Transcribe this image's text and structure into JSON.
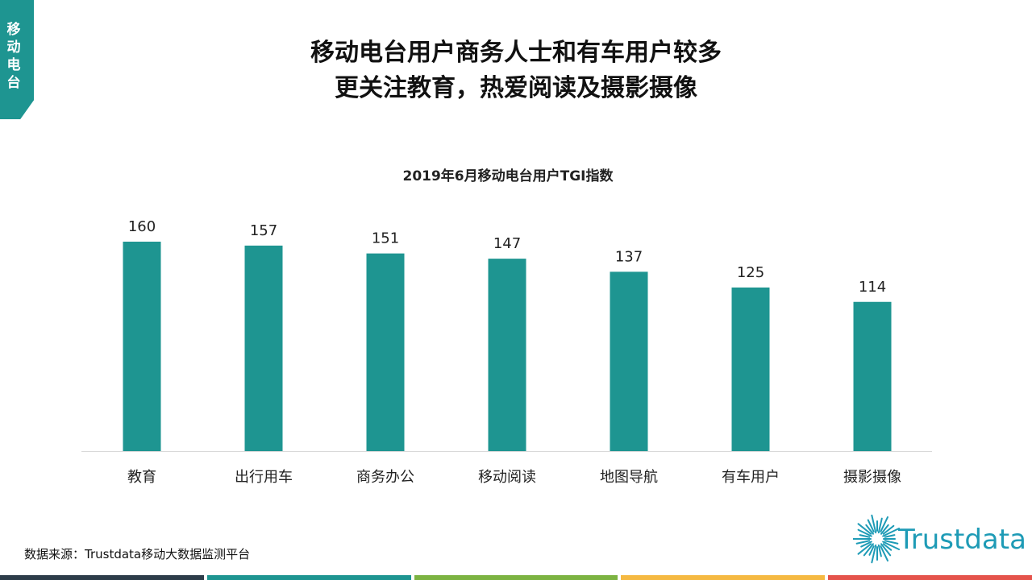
{
  "side_tag": "移动电台",
  "title_line1": "移动电台用户商务人士和有车用户较多",
  "title_line2": "更关注教育，热爱阅读及摄影摄像",
  "source": "数据来源：Trustdata移动大数据监测平台",
  "logo_text": "Trustdata",
  "colors": {
    "accent": "#1e9591",
    "bottom_bar": [
      "#2d3c49",
      "#1e9591",
      "#7cb342",
      "#f5b942",
      "#e5534b"
    ]
  },
  "chart_data": {
    "type": "bar",
    "title": "2019年6月移动电台用户TGI指数",
    "categories": [
      "教育",
      "出行用车",
      "商务办公",
      "移动阅读",
      "地图导航",
      "有车用户",
      "摄影摄像"
    ],
    "values": [
      160,
      157,
      151,
      147,
      137,
      125,
      114
    ],
    "ylim": [
      0,
      160
    ],
    "bar_color": "#1e9591",
    "grid": false,
    "data_labels": true
  }
}
